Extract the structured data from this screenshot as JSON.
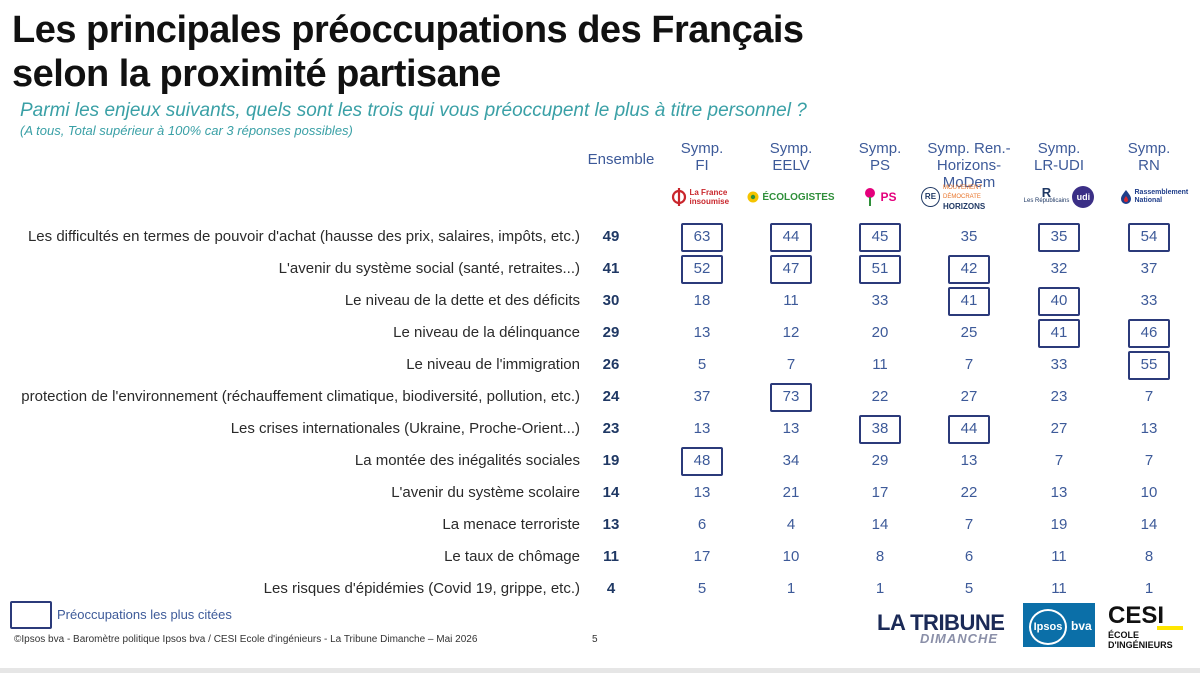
{
  "title_lines": [
    "Les principales préoccupations des Français",
    "selon la proximité partisane"
  ],
  "subtitle": "Parmi les enjeux suivants, quels sont les trois qui vous préoccupent le plus à titre personnel ?",
  "note": "(A tous, Total supérieur à 100% car 3 réponses possibles)",
  "logos": {
    "fi": "La France insoumise",
    "eelv": "ÉCOLOGISTES",
    "ps": "PS",
    "re_badge": "RE",
    "re_top": "MOUVEMENT DÉMOCRATE",
    "re_bottom": "HORIZONS",
    "lr_mark": "R",
    "lr": "Les Républicains",
    "udi": "udi",
    "rn": "Rassemblement National"
  },
  "legend_label": "Préoccupations les plus citées",
  "footer": "©Ipsos bva - Baromètre politique Ipsos bva / CESI Ecole d'ingénieurs - La Tribune Dimanche – Mai 2026",
  "page_number": "5",
  "brands": {
    "tribune": "LA TRIBUNE",
    "tribune_sub": "DIMANCHE",
    "ipsos": "Ipsos",
    "bva": "bva",
    "cesi": "CESI",
    "cesi_sub": "ÉCOLE D'INGÉNIEURS"
  },
  "colors": {
    "title": "#111111",
    "subtitle": "#3aa0a6",
    "values": "#3d5a99",
    "box": "#2b3a7a"
  },
  "chart_data": {
    "type": "table",
    "columns": [
      {
        "key": "ensemble",
        "label_lines": [
          "Ensemble"
        ]
      },
      {
        "key": "fi",
        "label_lines": [
          "Symp.",
          "FI"
        ]
      },
      {
        "key": "eelv",
        "label_lines": [
          "Symp.",
          "EELV"
        ]
      },
      {
        "key": "ps",
        "label_lines": [
          "Symp.",
          "PS"
        ]
      },
      {
        "key": "ren",
        "label_lines": [
          "Symp. Ren.-",
          "Horizons-",
          "MoDem"
        ]
      },
      {
        "key": "lrudi",
        "label_lines": [
          "Symp.",
          "LR-UDI"
        ]
      },
      {
        "key": "rn",
        "label_lines": [
          "Symp.",
          "RN"
        ]
      }
    ],
    "rows": [
      {
        "label": "Les difficultés en termes de pouvoir d'achat (hausse des prix, salaires, impôts, etc.)",
        "values": [
          49,
          63,
          44,
          45,
          35,
          35,
          54
        ],
        "highlighted": [
          false,
          true,
          true,
          true,
          false,
          true,
          true
        ]
      },
      {
        "label": "L'avenir du système social (santé, retraites...)",
        "values": [
          41,
          52,
          47,
          51,
          42,
          32,
          37
        ],
        "highlighted": [
          false,
          true,
          true,
          true,
          true,
          false,
          false
        ]
      },
      {
        "label": "Le niveau de la dette et des déficits",
        "values": [
          30,
          18,
          11,
          33,
          41,
          40,
          33
        ],
        "highlighted": [
          false,
          false,
          false,
          false,
          true,
          true,
          false
        ]
      },
      {
        "label": "Le niveau de la délinquance",
        "values": [
          29,
          13,
          12,
          20,
          25,
          41,
          46
        ],
        "highlighted": [
          false,
          false,
          false,
          false,
          false,
          true,
          true
        ]
      },
      {
        "label": "Le niveau de l'immigration",
        "values": [
          26,
          5,
          7,
          11,
          7,
          33,
          55
        ],
        "highlighted": [
          false,
          false,
          false,
          false,
          false,
          false,
          true
        ]
      },
      {
        "label": "protection de l'environnement (réchauffement climatique, biodiversité, pollution, etc.)",
        "values": [
          24,
          37,
          73,
          22,
          27,
          23,
          7
        ],
        "highlighted": [
          false,
          false,
          true,
          false,
          false,
          false,
          false
        ]
      },
      {
        "label": "Les crises internationales (Ukraine, Proche-Orient...)",
        "values": [
          23,
          13,
          13,
          38,
          44,
          27,
          13
        ],
        "highlighted": [
          false,
          false,
          false,
          true,
          true,
          false,
          false
        ]
      },
      {
        "label": "La montée des inégalités sociales",
        "values": [
          19,
          48,
          34,
          29,
          13,
          7,
          7
        ],
        "highlighted": [
          false,
          true,
          false,
          false,
          false,
          false,
          false
        ]
      },
      {
        "label": "L'avenir du système scolaire",
        "values": [
          14,
          13,
          21,
          17,
          22,
          13,
          10
        ],
        "highlighted": [
          false,
          false,
          false,
          false,
          false,
          false,
          false
        ]
      },
      {
        "label": "La menace terroriste",
        "values": [
          13,
          6,
          4,
          14,
          7,
          19,
          14
        ],
        "highlighted": [
          false,
          false,
          false,
          false,
          false,
          false,
          false
        ]
      },
      {
        "label": "Le taux de chômage",
        "values": [
          11,
          17,
          10,
          8,
          6,
          11,
          8
        ],
        "highlighted": [
          false,
          false,
          false,
          false,
          false,
          false,
          false
        ]
      },
      {
        "label": "Les risques d'épidémies (Covid 19, grippe, etc.)",
        "values": [
          4,
          5,
          1,
          1,
          5,
          11,
          1
        ],
        "highlighted": [
          false,
          false,
          false,
          false,
          false,
          false,
          false
        ]
      }
    ]
  }
}
